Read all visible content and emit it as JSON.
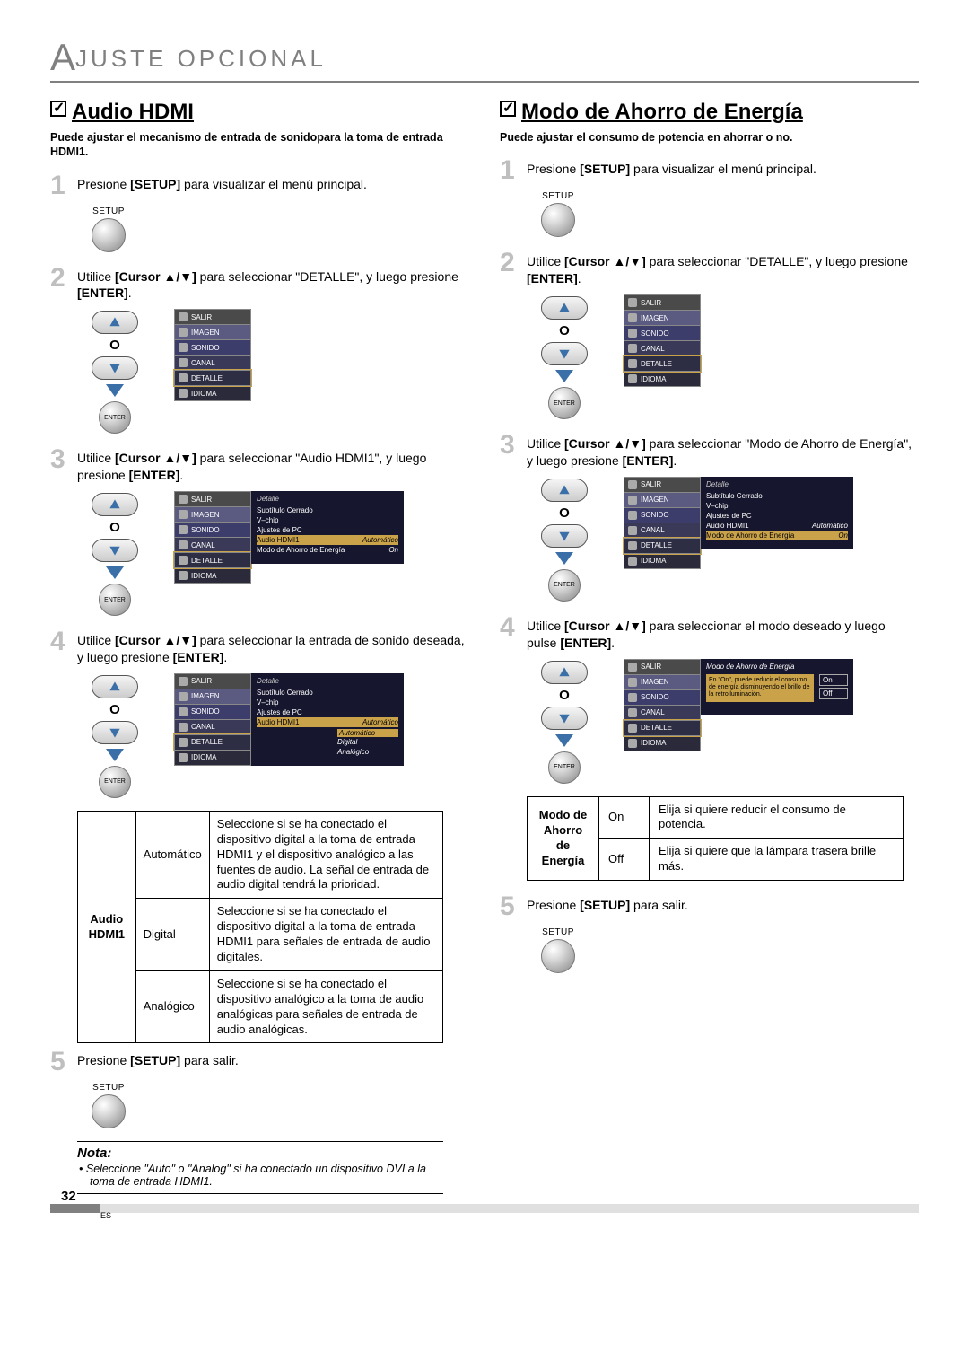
{
  "header": {
    "title_prefix": "A",
    "title_rest": "JUSTE   OPCIONAL"
  },
  "left": {
    "title": "Audio HDMI",
    "desc": "Puede ajustar el mecanismo de entrada de sonidopara la toma de entrada HDMI1.",
    "step1": "Presione <b>[SETUP]</b> para visualizar el menú principal.",
    "step2": "Utilice <b>[Cursor ▲/▼]</b> para seleccionar \"DETALLE\", y luego presione <b>[ENTER]</b>.",
    "step3": "Utilice <b>[Cursor ▲/▼]</b> para seleccionar \"Audio HDMI1\", y luego presione <b>[ENTER]</b>.",
    "step4": "Utilice <b>[Cursor ▲/▼]</b> para seleccionar la entrada de sonido deseada, y luego presione <b>[ENTER]</b>.",
    "step5": "Presione <b>[SETUP]</b> para salir.",
    "setup_label": "SETUP",
    "enter_label": "ENTER",
    "pad_o": "O",
    "menu": {
      "salir": "SALIR",
      "imagen": "IMAGEN",
      "sonido": "SONIDO",
      "canal": "CANAL",
      "detalle": "DETALLE",
      "idioma": "IDIOMA"
    },
    "detalle_panel": {
      "title": "Detalle",
      "rows": [
        {
          "l": "Subtítulo Cerrado",
          "r": ""
        },
        {
          "l": "V–chip",
          "r": ""
        },
        {
          "l": "Ajustes de PC",
          "r": ""
        },
        {
          "l": "Audio HDMI1",
          "r": "Automático",
          "hl": true
        },
        {
          "l": "Modo de Ahorro de Energía",
          "r": "On"
        }
      ],
      "opts": [
        "Automático",
        "Digital",
        "Analógico"
      ]
    },
    "table": {
      "header": "Audio HDMI1",
      "rows": [
        {
          "k": "Automático",
          "v": "Seleccione si se ha conectado el dispositivo digital a la toma de entrada HDMI1 y el dispositivo analógico a las fuentes de audio. La señal de entrada de audio digital tendrá la prioridad."
        },
        {
          "k": "Digital",
          "v": "Seleccione si se ha conectado el dispositivo digital a la toma de entrada HDMI1 para señales de entrada de audio digitales."
        },
        {
          "k": "Analógico",
          "v": "Seleccione si se ha conectado el dispositivo analógico a la toma de audio analógicas para señales de entrada de audio analógicas."
        }
      ]
    },
    "nota_head": "Nota:",
    "nota_body": "Seleccione \"Auto\" o \"Analog\" si ha conectado un dispositivo DVI a la toma de entrada HDMI1."
  },
  "right": {
    "title": "Modo de Ahorro de Energía",
    "desc": "Puede ajustar el consumo de potencia en ahorrar o no.",
    "step1": "Presione <b>[SETUP]</b> para visualizar el menú principal.",
    "step2": "Utilice <b>[Cursor ▲/▼]</b> para seleccionar \"DETALLE\", y luego presione <b>[ENTER]</b>.",
    "step3": "Utilice <b>[Cursor ▲/▼]</b> para seleccionar \"Modo de Ahorro de Energía\", y luego presione <b>[ENTER]</b>.",
    "step4": "Utilice <b>[Cursor ▲/▼]</b> para seleccionar el modo deseado y luego pulse <b>[ENTER]</b>.",
    "step5": "Presione <b>[SETUP]</b> para salir.",
    "detalle_panel": {
      "title": "Detalle",
      "rows": [
        {
          "l": "Subtítulo Cerrado",
          "r": ""
        },
        {
          "l": "V–chip",
          "r": ""
        },
        {
          "l": "Ajustes de PC",
          "r": ""
        },
        {
          "l": "Audio HDMI1",
          "r": "Automático"
        },
        {
          "l": "Modo de Ahorro de Energía",
          "r": "On",
          "hl": true
        }
      ]
    },
    "energy_panel": {
      "title": "Modo de Ahorro de Energía",
      "text": "En \"On\", puede reducir el consumo de energía disminuyendo el brillo de la retroiluminación.",
      "opts": [
        "On",
        "Off"
      ]
    },
    "table": {
      "header": "Modo de Ahorro de Energía",
      "rows": [
        {
          "k": "On",
          "v": "Elija si quiere reducir el consumo de potencia."
        },
        {
          "k": "Off",
          "v": "Elija si quiere que la lámpara trasera brille más."
        }
      ]
    }
  },
  "footer": {
    "page": "32",
    "es": "ES"
  },
  "colors": {
    "gray": "#808080",
    "lightgray": "#e0e0e0",
    "stepnum": "#bfbfbf",
    "panel_bg": "#16162e",
    "panel_hl": "#c9a24a",
    "tri": "#3a6fa8"
  }
}
